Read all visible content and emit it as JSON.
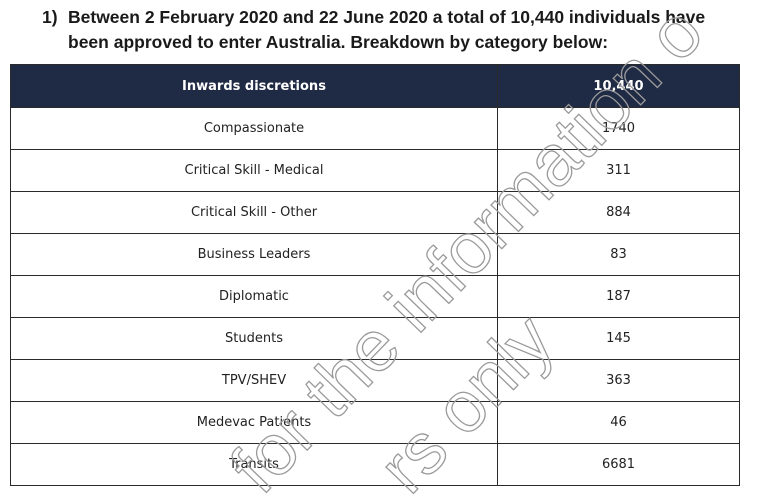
{
  "heading": {
    "number": "1)",
    "line1": "Between 2 February 2020 and 22 June 2020 a total of 10,440 individuals have",
    "line2": "been approved to enter Australia. Breakdown by category below:"
  },
  "table": {
    "header": {
      "label": "Inwards discretions",
      "value": "10,440"
    },
    "rows": [
      {
        "label": "Compassionate",
        "value": "1740"
      },
      {
        "label": "Critical Skill - Medical",
        "value": "311"
      },
      {
        "label": "Critical Skill - Other",
        "value": "884"
      },
      {
        "label": "Business Leaders",
        "value": "83"
      },
      {
        "label": "Diplomatic",
        "value": "187"
      },
      {
        "label": "Students",
        "value": "145"
      },
      {
        "label": "TPV/SHEV",
        "value": "363"
      },
      {
        "label": "Medevac Patients",
        "value": "46"
      },
      {
        "label": "Transits",
        "value": "6681"
      }
    ]
  },
  "watermark": {
    "line1": "for the information o",
    "line2": "rs only"
  }
}
